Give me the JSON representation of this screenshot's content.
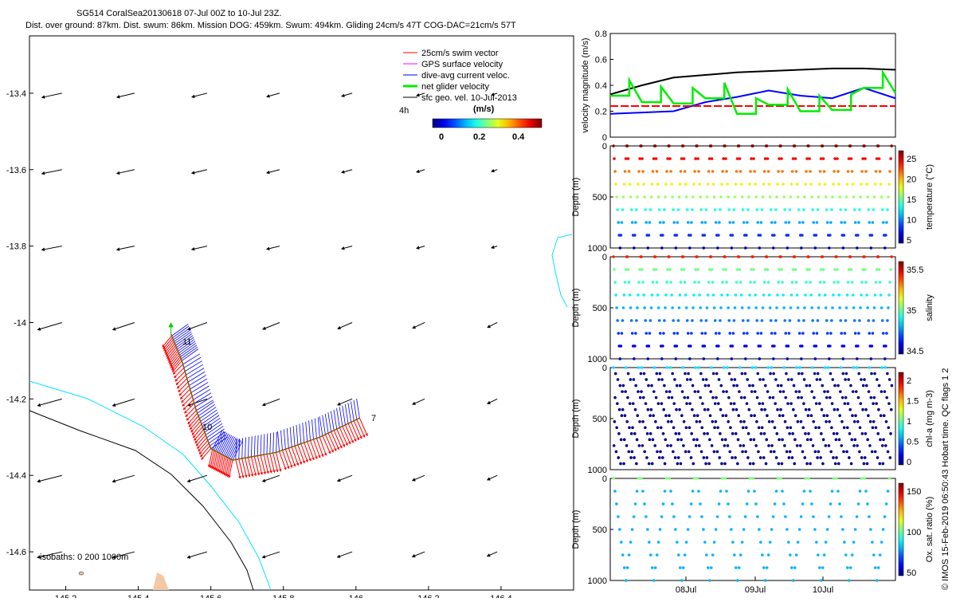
{
  "header": {
    "title_line1": "SG514 CoralSea20130618 07-Jul 00Z to 10-Jul 23Z.",
    "title_line2": "Dist. over ground: 87km. Dist. swum: 86km. Mission DOG: 459km. Swum: 494km. Gliding 24cm/s 47T COG-DAC=21cm/s 57T"
  },
  "side_credit": "© IMOS 15-Feb-2019 06:50:43 Hobart time. QC flags 1  2",
  "map": {
    "legend": {
      "items": [
        {
          "label": "25cm/s swim vector",
          "color": "#ff0000"
        },
        {
          "label": "GPS surface velocity",
          "color": "#ff00ff"
        },
        {
          "label": "dive-avg current veloc.",
          "color": "#0000ff"
        },
        {
          "label": "net glider velocity",
          "color": "#00ee00"
        },
        {
          "label": "sfc geo. vel. 10-Jul-2013",
          "color": "#000000"
        }
      ],
      "note_4h": "4h",
      "colorbar_title": "(m/s)",
      "colorbar_ticks": [
        "0",
        "0.2",
        "0.4"
      ]
    },
    "isobaths_label": "isobaths: 0   200  1000m",
    "track_labels": [
      "11",
      "10",
      "7"
    ],
    "cyan_color": "#00e5ff"
  },
  "chart_data": [
    {
      "type": "vector-map",
      "xlim": [
        145.1,
        146.6
      ],
      "ylim": [
        -14.7,
        -13.25
      ],
      "xticks": [
        145.2,
        145.4,
        145.6,
        145.8,
        146,
        146.2,
        146.4
      ],
      "xtick_labels": [
        "145.2",
        "145.4",
        "145.6",
        "145.8",
        "146",
        "146.2",
        "146.4"
      ],
      "yticks": [
        -13.4,
        -13.6,
        -13.8,
        -14,
        -14.2,
        -14.4,
        -14.6
      ],
      "ytick_labels": [
        "-13.4",
        "-13.6",
        "-13.8",
        "-14",
        "-14.2",
        "-14.4",
        "-14.6"
      ],
      "vector_grid_lon": [
        145.15,
        145.35,
        145.55,
        145.75,
        145.95,
        146.15,
        146.35
      ],
      "vector_grid_lat": [
        -13.4,
        -13.6,
        -13.8,
        -14.0,
        -14.2,
        -14.4,
        -14.6
      ],
      "track": [
        [
          146.01,
          -14.25
        ],
        [
          145.9,
          -14.3
        ],
        [
          145.78,
          -14.34
        ],
        [
          145.66,
          -14.36
        ],
        [
          145.6,
          -14.33
        ],
        [
          145.56,
          -14.23
        ],
        [
          145.52,
          -14.1
        ],
        [
          145.49,
          -14.03
        ]
      ],
      "track_label_positions": [
        [
          145.52,
          -14.04
        ],
        [
          145.55,
          -14.26
        ],
        [
          146.03,
          -14.24
        ]
      ]
    },
    {
      "type": "line",
      "ylabel": "velocity magnitude (m/s)",
      "ylim": [
        0,
        0.8
      ],
      "yticks": [
        "0",
        "0.2",
        "0.4",
        "0.6",
        "0.8"
      ],
      "series": [
        {
          "color": "#000000",
          "values": [
            0.33,
            0.4,
            0.46,
            0.48,
            0.5,
            0.51,
            0.52,
            0.53,
            0.53,
            0.52
          ]
        },
        {
          "color": "#0000ff",
          "values": [
            0.18,
            0.19,
            0.2,
            0.27,
            0.31,
            0.36,
            0.32,
            0.3,
            0.38,
            0.3
          ]
        },
        {
          "color": "#ff0000",
          "values": [
            0.24,
            0.24,
            0.24,
            0.24,
            0.24,
            0.24,
            0.24,
            0.24,
            0.24,
            0.24
          ]
        },
        {
          "color": "#00ee00",
          "values": [
            0.32,
            0.27,
            0.26,
            0.3,
            0.18,
            0.25,
            0.2,
            0.21,
            0.38,
            0.34
          ]
        }
      ]
    },
    {
      "type": "scatter",
      "ylabel": "Depth (m)",
      "ylim": [
        1000,
        0
      ],
      "yticks": [
        "0",
        "500",
        "1000"
      ],
      "colorbar_label": "temperature (°C)",
      "colorbar_ticks": [
        "5",
        "10",
        "15",
        "20",
        "25"
      ],
      "profiles": 20
    },
    {
      "type": "scatter",
      "ylabel": "Depth (m)",
      "ylim": [
        1000,
        0
      ],
      "yticks": [
        "0",
        "500",
        "1000"
      ],
      "colorbar_label": "salinity",
      "colorbar_ticks": [
        "34.5",
        "35",
        "35.5"
      ],
      "profiles": 20
    },
    {
      "type": "scatter",
      "ylabel": "Depth (m)",
      "ylim": [
        1000,
        0
      ],
      "yticks": [
        "0",
        "500",
        "1000"
      ],
      "colorbar_label": "chl-a (mg m-3)",
      "colorbar_ticks": [
        "0",
        "0.5",
        "1",
        "1.5",
        "2"
      ],
      "profiles": 30
    },
    {
      "type": "scatter",
      "ylabel": "Depth (m)",
      "ylim": [
        1000,
        0
      ],
      "yticks": [
        "0",
        "500",
        "1000"
      ],
      "colorbar_label": "Ox. sat. ratio (%)",
      "colorbar_ticks": [
        "50",
        "100",
        "150"
      ],
      "profiles": 10,
      "xtick_labels": [
        "08Jul",
        "09Jul",
        "10Jul"
      ]
    }
  ]
}
